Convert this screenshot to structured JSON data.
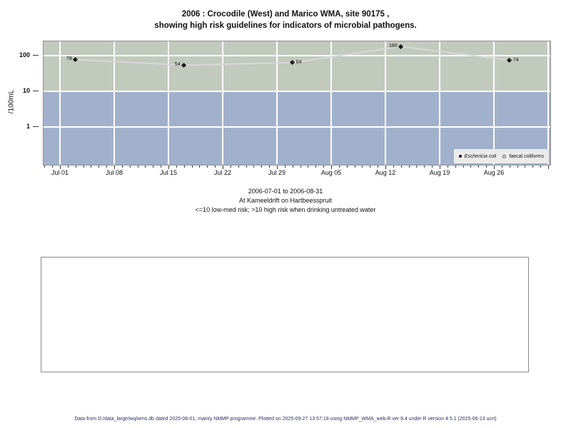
{
  "title": {
    "line1": "2006 : Crocodile (West) and Marico WMA, site 90175 ,",
    "line2": "showing high risk guidelines for indicators of microbial pathogens."
  },
  "chart_data": {
    "type": "line",
    "ylabel": "/100mL",
    "y_scale": "log10",
    "y_ticks": [
      "100",
      "10",
      "1"
    ],
    "risk_threshold": 10,
    "bands": [
      {
        "name": "high-risk-band",
        "range": ">10",
        "color": "#c2c9bd"
      },
      {
        "name": "low-med-risk-band",
        "range": "<=10",
        "color": "#a2b1cb"
      }
    ],
    "x_ticks": [
      {
        "label": "Jul 01",
        "day": 0
      },
      {
        "label": "Jul 08",
        "day": 7
      },
      {
        "label": "Jul 15",
        "day": 14
      },
      {
        "label": "Jul 22",
        "day": 21
      },
      {
        "label": "Jul 29",
        "day": 28
      },
      {
        "label": "Aug 05",
        "day": 35
      },
      {
        "label": "Aug 12",
        "day": 42
      },
      {
        "label": "Aug 19",
        "day": 49
      },
      {
        "label": "Aug 26",
        "day": 56
      }
    ],
    "x_minor_tick_interval_days": 1,
    "series": [
      {
        "name": "Eschericia coli",
        "symbol": "filled-diamond",
        "line_color": "#d8d8d8",
        "point_color": "#151515",
        "points": [
          {
            "date": "2006-07-03",
            "day": 2,
            "value": 78,
            "label": "78",
            "label_side": "left"
          },
          {
            "date": "2006-07-17",
            "day": 16,
            "value": 54,
            "label": "54",
            "label_side": "left"
          },
          {
            "date": "2006-07-31",
            "day": 30,
            "value": 64,
            "label": "64",
            "label_side": "right"
          },
          {
            "date": "2006-08-14",
            "day": 44,
            "value": 180,
            "label": "180",
            "label_side": "left"
          },
          {
            "date": "2006-08-28",
            "day": 58,
            "value": 74,
            "label": "74",
            "label_side": "right"
          }
        ]
      },
      {
        "name": "faecal coliforms",
        "symbol": "open-circle",
        "points": []
      }
    ],
    "legend": [
      {
        "symbol": "filled-dot",
        "label": "Eschericia coli",
        "italic": true
      },
      {
        "symbol": "open-dot",
        "label": "faecal coliforms",
        "italic": false
      }
    ],
    "legend_position": "bottom-right"
  },
  "subtitle": {
    "line1": "2006-07-01 to 2006-08-31",
    "line2": "At Kameeldrift on Hartbeesspruit",
    "line3": "<=10 low-med risk; >10 high risk when drinking untreated water"
  },
  "footer": {
    "text": "Data from D:/data_large/wq/wms.db dated 2025-08-01, mainly NMMP programme. Plotted on 2025-09-27 13:57:18 using NMMP_WMA_web.R ver 9.4 under R version 4.5.1 (2025-06-13 ucrt)"
  }
}
